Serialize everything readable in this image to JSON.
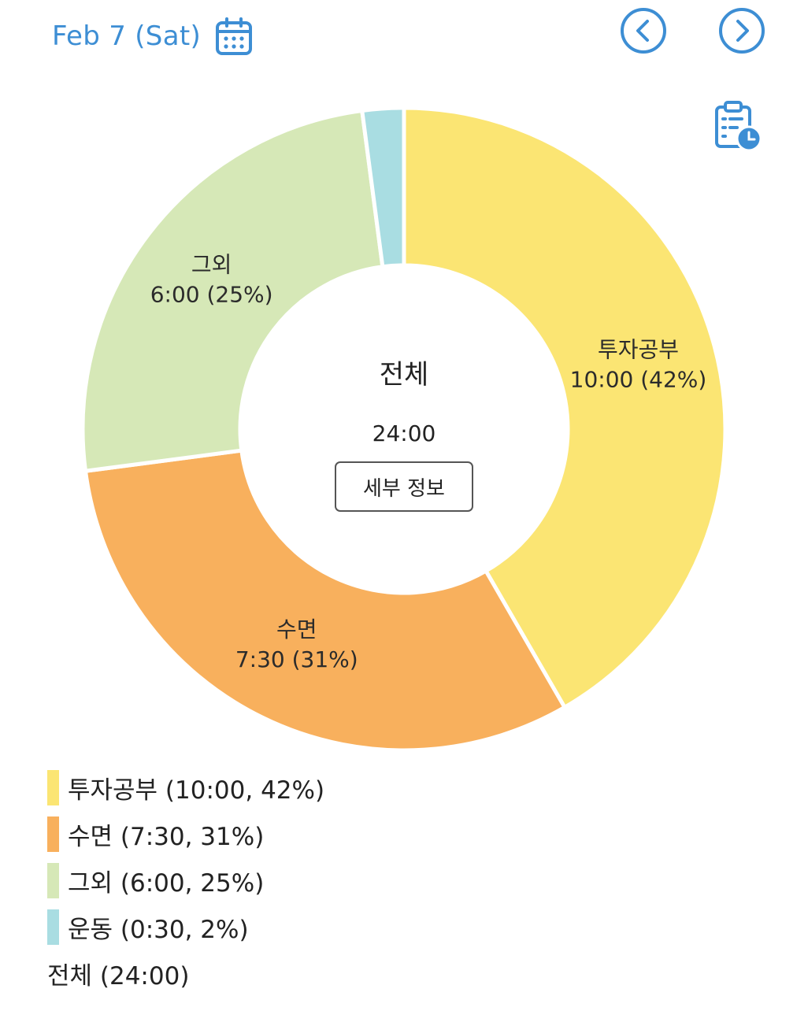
{
  "header": {
    "date": "Feb 7 (Sat)",
    "icons": {
      "calendar": "calendar-icon",
      "prev": "chevron-left-circle-icon",
      "next": "chevron-right-circle-icon",
      "report": "clipboard-clock-icon"
    }
  },
  "colors": {
    "accent": "#3d8ed4",
    "segment_invest": "#fbe573",
    "segment_sleep": "#f8b05d",
    "segment_other": "#d6e8b7",
    "segment_exercise": "#a9dde2"
  },
  "center": {
    "title": "전체",
    "total": "24:00",
    "detail_button": "세부 정보"
  },
  "chart_data": {
    "type": "pie",
    "variant": "donut",
    "series": [
      {
        "name": "투자공부",
        "time": "10:00",
        "percent": 42,
        "color": "#fbe573",
        "label_line1": "투자공부",
        "label_line2": "10:00 (42%)"
      },
      {
        "name": "수면",
        "time": "7:30",
        "percent": 31,
        "color": "#f8b05d",
        "label_line1": "수면",
        "label_line2": "7:30 (31%)"
      },
      {
        "name": "그외",
        "time": "6:00",
        "percent": 25,
        "color": "#d6e8b7",
        "label_line1": "그외",
        "label_line2": "6:00 (25%)"
      },
      {
        "name": "운동",
        "time": "0:30",
        "percent": 2,
        "color": "#a9dde2",
        "label_line1": "",
        "label_line2": ""
      }
    ],
    "minutes": [
      600,
      450,
      360,
      30
    ]
  },
  "legend": {
    "items": [
      {
        "text": "투자공부 (10:00, 42%)",
        "color": "#fbe573"
      },
      {
        "text": "수면 (7:30, 31%)",
        "color": "#f8b05d"
      },
      {
        "text": "그외 (6:00, 25%)",
        "color": "#d6e8b7"
      },
      {
        "text": "운동 (0:30, 2%)",
        "color": "#a9dde2"
      }
    ],
    "total": "전체 (24:00)"
  }
}
